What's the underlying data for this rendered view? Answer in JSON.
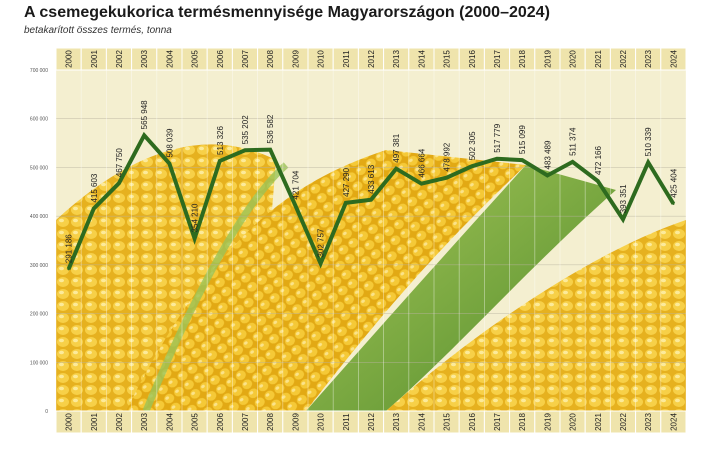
{
  "header": {
    "title": "A csemegekukorica termésmennyisége Magyarországon (2000–2024)",
    "subtitle": "betakarított összes termés, tonna"
  },
  "colors": {
    "line": "#2e6b1f",
    "kernel": "#f2c531",
    "husk": "#7fae3c",
    "band": "#efe4ac",
    "bg": "#ffffff"
  },
  "chart_data": {
    "type": "line",
    "title": "A csemegekukorica termésmennyisége Magyarországon (2000–2024)",
    "subtitle": "betakarított összes termés, tonna",
    "xlabel": "",
    "ylabel": "",
    "ylim": [
      0,
      700000
    ],
    "yticks": [
      0,
      100000,
      200000,
      300000,
      400000,
      500000,
      600000,
      700000
    ],
    "ytick_labels": [
      "0",
      "100 000",
      "200 000",
      "300 000",
      "400 000",
      "500 000",
      "600 000",
      "700 000"
    ],
    "grid": true,
    "categories": [
      "2000",
      "2001",
      "2002",
      "2003",
      "2004",
      "2005",
      "2006",
      "2007",
      "2008",
      "2009",
      "2010",
      "2011",
      "2012",
      "2013",
      "2014",
      "2015",
      "2016",
      "2017",
      "2018",
      "2019",
      "2020",
      "2021",
      "2022",
      "2023",
      "2024"
    ],
    "values": [
      291186,
      415603,
      467750,
      565948,
      508039,
      354210,
      513326,
      535202,
      536582,
      421704,
      302757,
      427290,
      433613,
      497381,
      466664,
      478992,
      502305,
      517779,
      515099,
      483489,
      511374,
      472166,
      393351,
      510339,
      425404
    ],
    "value_labels": [
      "291 186",
      "415 603",
      "467 750",
      "565 948",
      "508 039",
      "354 210",
      "513 326",
      "535 202",
      "536 582",
      "421 704",
      "302 757",
      "427 290",
      "433 613",
      "497 381",
      "466 664",
      "478 992",
      "502 305",
      "517 779",
      "515 099",
      "483 489",
      "511 374",
      "472 166",
      "393 351",
      "510 339",
      "425 404"
    ]
  }
}
